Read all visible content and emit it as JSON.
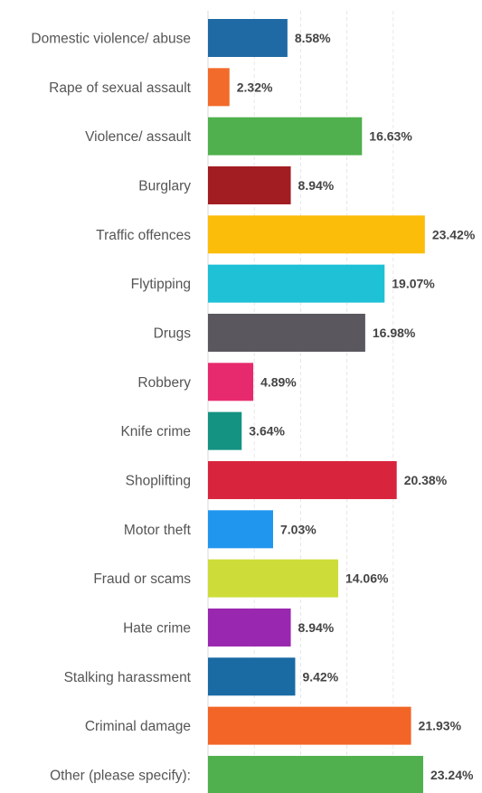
{
  "chart_data": {
    "type": "bar",
    "orientation": "horizontal",
    "categories": [
      "Domestic violence/ abuse",
      "Rape of sexual assault",
      "Violence/ assault",
      "Burglary",
      "Traffic offences",
      "Flytipping",
      "Drugs",
      "Robbery",
      "Knife crime",
      "Shoplifting",
      "Motor theft",
      "Fraud or scams",
      "Hate crime",
      "Stalking harassment",
      "Criminal damage",
      "Other (please specify):"
    ],
    "values": [
      8.58,
      2.32,
      16.63,
      8.94,
      23.42,
      19.07,
      16.98,
      4.89,
      3.64,
      20.38,
      7.03,
      14.06,
      8.94,
      9.42,
      21.93,
      23.24
    ],
    "value_labels": [
      "8.58%",
      "2.32%",
      "16.63%",
      "8.94%",
      "23.42%",
      "19.07%",
      "16.98%",
      "4.89%",
      "3.64%",
      "20.38%",
      "7.03%",
      "14.06%",
      "8.94%",
      "9.42%",
      "21.93%",
      "23.24%"
    ],
    "colors": [
      "#1f6aa5",
      "#f26b2a",
      "#4fb04d",
      "#a11d22",
      "#fbbd09",
      "#1ec1d5",
      "#5a575e",
      "#e72a6d",
      "#149282",
      "#d9243d",
      "#2196ee",
      "#cddc39",
      "#9a27b0",
      "#1a6aa4",
      "#f26526",
      "#4fb04d"
    ],
    "xlim": [
      0,
      25
    ],
    "grid": true,
    "title": "",
    "xlabel": "",
    "ylabel": ""
  }
}
